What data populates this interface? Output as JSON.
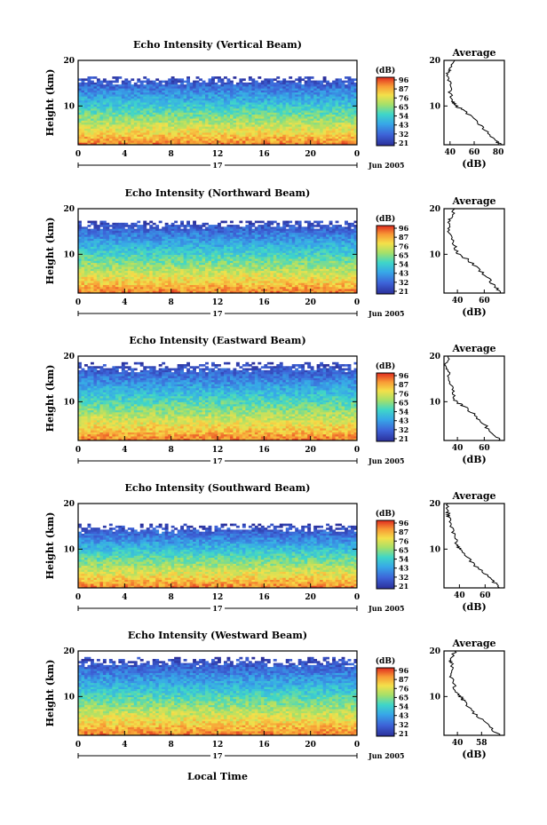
{
  "figure": {
    "ylabel": "Height (km)",
    "avg_title": "Average",
    "avg_xlabel": "(dB)",
    "cbar_label": "(dB)",
    "cbar_ticks": [
      "96",
      "87",
      "76",
      "65",
      "54",
      "43",
      "32",
      "21"
    ],
    "y_ticks": [
      "20",
      "10"
    ],
    "time_ticks": [
      "0",
      "4",
      "8",
      "12",
      "16",
      "20",
      "0"
    ],
    "day_label": "17",
    "date_label": "Jun 2005",
    "xlabel": "Local Time"
  },
  "chart_data": [
    {
      "type": "heatmap",
      "title": "Echo Intensity (Vertical Beam)",
      "x_range_hours": [
        0,
        24
      ],
      "y_range_km": [
        1.5,
        20
      ],
      "color_range_db": [
        21,
        96
      ],
      "echo_top_km": 16,
      "average_profile": {
        "xticks": [
          "40",
          "60",
          "80"
        ],
        "xlim": [
          35,
          85
        ],
        "heights_km": [
          1.5,
          3,
          5,
          7,
          9,
          10,
          11,
          13,
          15,
          17,
          18,
          20
        ],
        "db": [
          82,
          75,
          68,
          60,
          52,
          45,
          42,
          40,
          40,
          38,
          40,
          44
        ]
      }
    },
    {
      "type": "heatmap",
      "title": "Echo Intensity (Northward Beam)",
      "x_range_hours": [
        0,
        24
      ],
      "y_range_km": [
        1.5,
        20
      ],
      "color_range_db": [
        21,
        96
      ],
      "echo_top_km": 17,
      "average_profile": {
        "xticks": [
          "40",
          "60"
        ],
        "xlim": [
          30,
          75
        ],
        "heights_km": [
          1.5,
          3,
          5,
          7,
          9,
          10,
          11,
          13,
          15,
          17,
          18,
          20
        ],
        "db": [
          73,
          68,
          62,
          55,
          47,
          41,
          39,
          36,
          34,
          33,
          35,
          38
        ]
      }
    },
    {
      "type": "heatmap",
      "title": "Echo Intensity (Eastward Beam)",
      "x_range_hours": [
        0,
        24
      ],
      "y_range_km": [
        1.5,
        20
      ],
      "color_range_db": [
        21,
        96
      ],
      "echo_top_km": 18,
      "average_profile": {
        "xticks": [
          "40",
          "60"
        ],
        "xlim": [
          30,
          75
        ],
        "heights_km": [
          1.5,
          3,
          5,
          7,
          9,
          10,
          11,
          13,
          15,
          17,
          18,
          20
        ],
        "db": [
          72,
          66,
          60,
          53,
          45,
          39,
          37,
          36,
          34,
          33,
          32,
          33
        ]
      }
    },
    {
      "type": "heatmap",
      "title": "Echo Intensity (Southward Beam)",
      "x_range_hours": [
        0,
        24
      ],
      "y_range_km": [
        1.5,
        20
      ],
      "color_range_db": [
        21,
        96
      ],
      "echo_top_km": 15,
      "average_profile": {
        "xticks": [
          "40",
          "60"
        ],
        "xlim": [
          28,
          75
        ],
        "heights_km": [
          1.5,
          3,
          5,
          7,
          9,
          10,
          11,
          13,
          15,
          17,
          18,
          20
        ],
        "db": [
          72,
          66,
          58,
          50,
          44,
          40,
          38,
          36,
          34,
          32,
          31,
          31
        ]
      }
    },
    {
      "type": "heatmap",
      "title": "Echo Intensity (Westward Beam)",
      "x_range_hours": [
        0,
        24
      ],
      "y_range_km": [
        1.5,
        20
      ],
      "color_range_db": [
        21,
        96
      ],
      "echo_top_km": 18,
      "average_profile": {
        "xticks": [
          "40",
          "58"
        ],
        "xlim": [
          30,
          75
        ],
        "heights_km": [
          1.5,
          3,
          5,
          7,
          9,
          10,
          11,
          13,
          15,
          17,
          18,
          20
        ],
        "db": [
          72,
          65,
          58,
          50,
          45,
          42,
          39,
          37,
          35,
          36,
          35,
          38
        ]
      }
    }
  ]
}
